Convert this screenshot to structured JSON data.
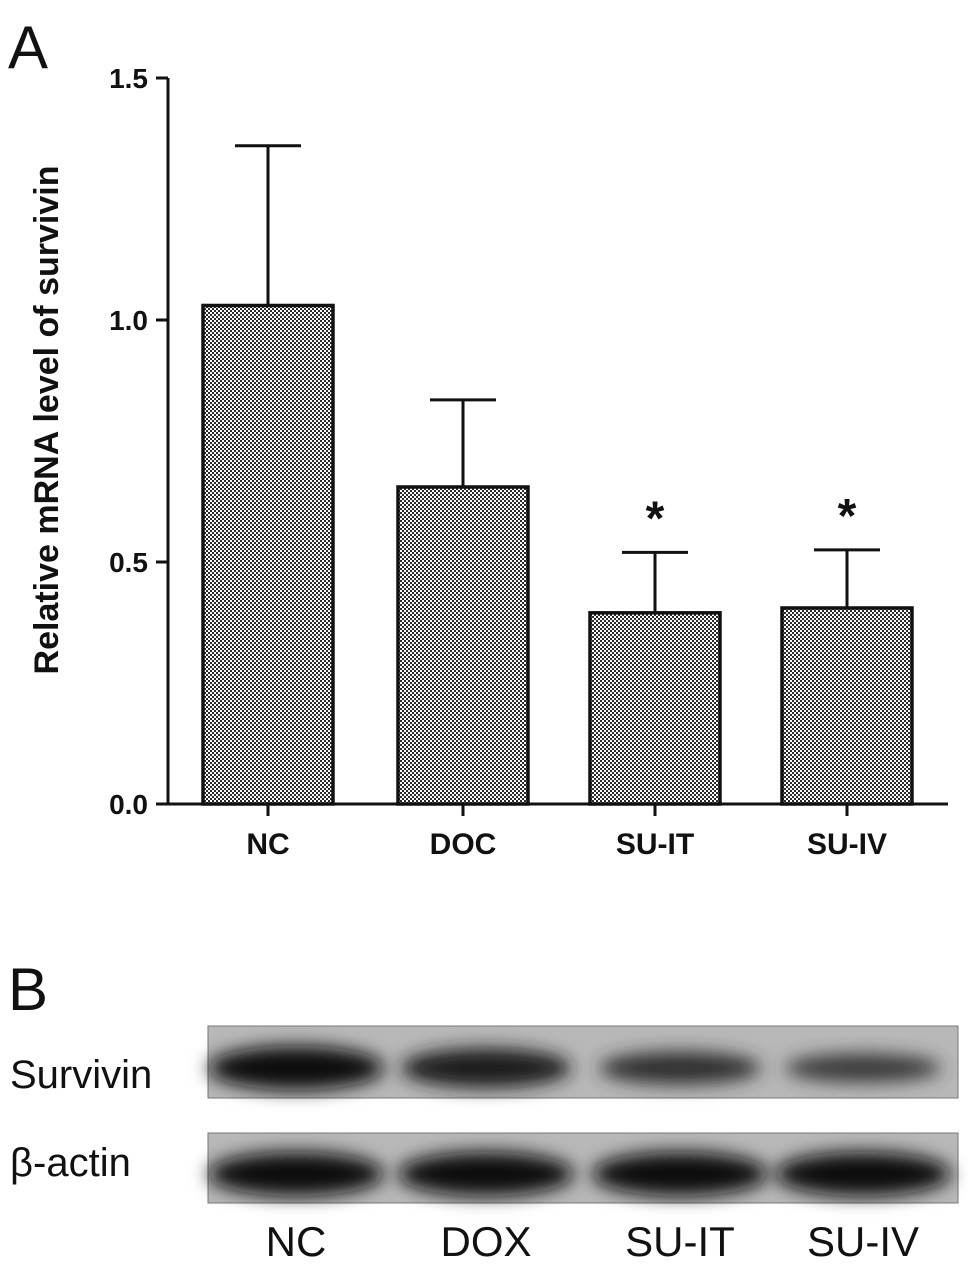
{
  "panel_a": {
    "label": "A"
  },
  "panel_b": {
    "label": "B",
    "rows": [
      {
        "label": "Survivin",
        "intensities": [
          1.0,
          0.85,
          0.6,
          0.45
        ]
      },
      {
        "label": "β-actin",
        "intensities": [
          1.0,
          1.0,
          1.0,
          1.0
        ]
      }
    ],
    "lanes": [
      "NC",
      "DOX",
      "SU-IT",
      "SU-IV"
    ]
  },
  "chart_data": {
    "type": "bar",
    "title": "",
    "xlabel": "",
    "ylabel": "Relative mRNA level of survivin",
    "categories": [
      "NC",
      "DOC",
      "SU-IT",
      "SU-IV"
    ],
    "values": [
      1.03,
      0.655,
      0.395,
      0.405
    ],
    "errors": [
      0.33,
      0.18,
      0.125,
      0.12
    ],
    "annotations": [
      "",
      "",
      "*",
      "*"
    ],
    "ylim": [
      0,
      1.5
    ],
    "yticks": [
      "0.0",
      "0.5",
      "1.0",
      "1.5"
    ],
    "bar_fill": "checkered gray",
    "grid": false
  }
}
